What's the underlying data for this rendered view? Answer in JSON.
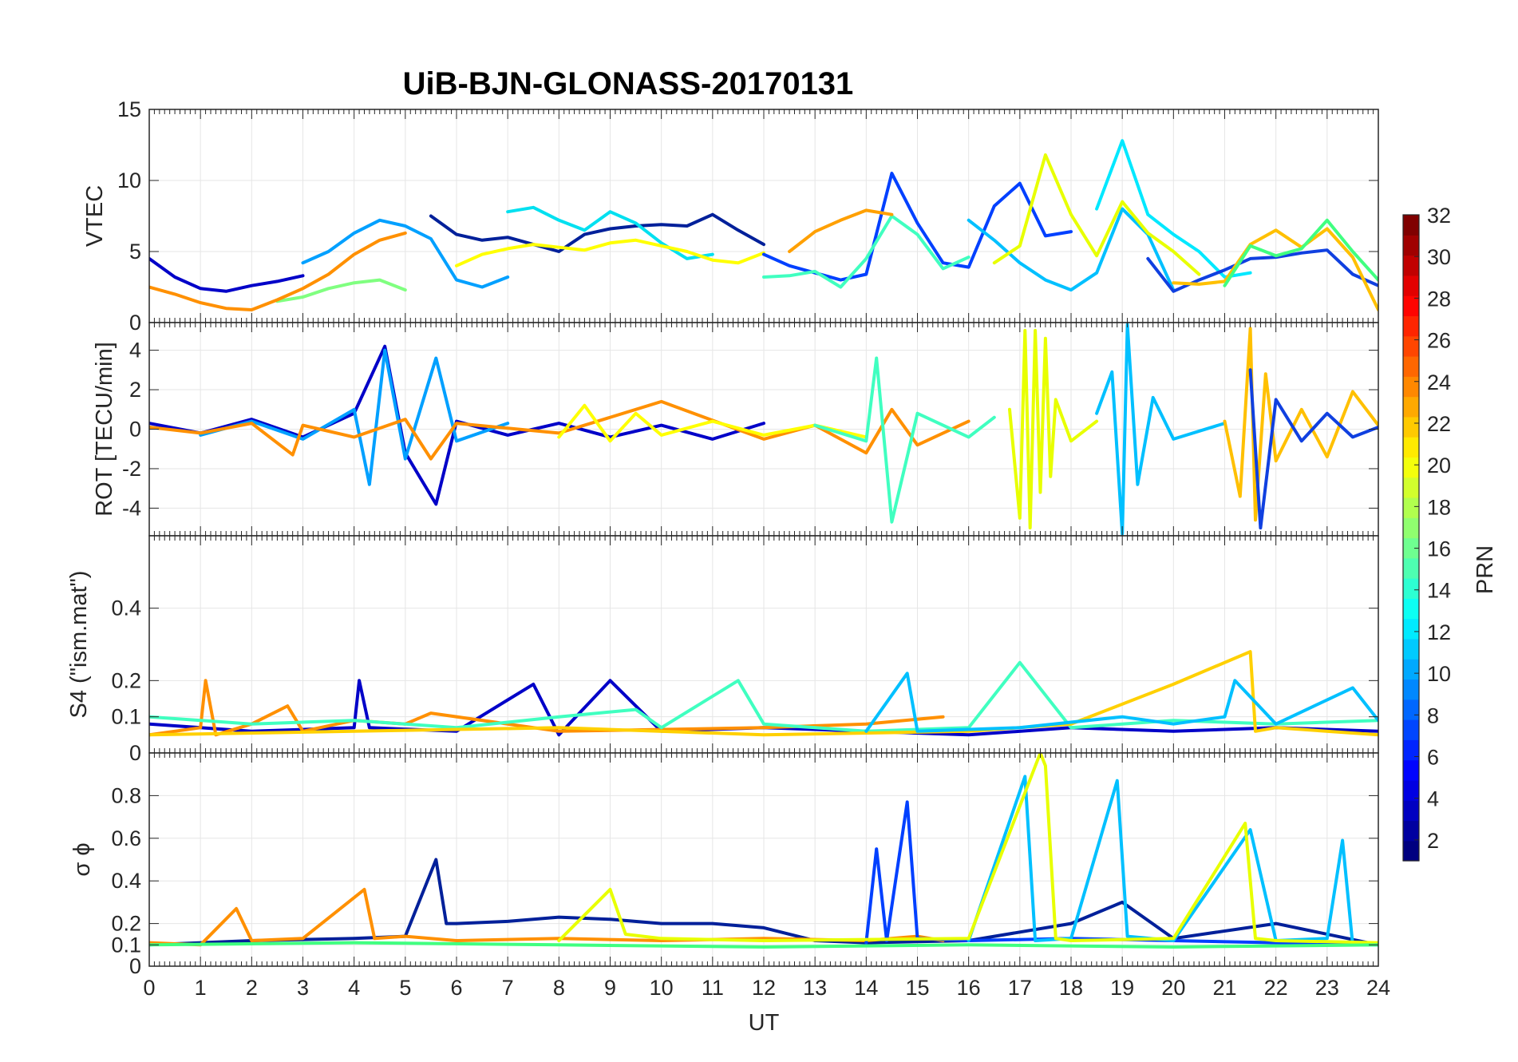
{
  "figure": {
    "title": "UiB-BJN-GLONASS-20170131",
    "xlabel": "UT"
  },
  "colorbar": {
    "label": "PRN",
    "colormap": "jet",
    "range": [
      1,
      32
    ],
    "ticks": [
      "2",
      "4",
      "6",
      "8",
      "10",
      "12",
      "14",
      "16",
      "18",
      "20",
      "22",
      "24",
      "26",
      "28",
      "30",
      "32"
    ]
  },
  "chart_data": [
    {
      "type": "line",
      "panel": "vtec",
      "ylabel": "VTEC",
      "xlim": [
        0,
        24
      ],
      "ylim": [
        0,
        15
      ],
      "yticks": [
        0,
        5,
        10,
        15
      ],
      "xticks": [],
      "grid": true,
      "series": [
        {
          "color": "#0000c8",
          "x": [
            0,
            0.5,
            1,
            1.5,
            2,
            2.5,
            3
          ],
          "y": [
            4.5,
            3.2,
            2.4,
            2.2,
            2.6,
            2.9,
            3.3
          ]
        },
        {
          "color": "#00a0ff",
          "x": [
            3,
            3.5,
            4,
            4.5,
            5,
            5.5,
            6,
            6.5,
            7
          ],
          "y": [
            4.2,
            5.0,
            6.3,
            7.2,
            6.8,
            5.9,
            3.0,
            2.5,
            3.2
          ]
        },
        {
          "color": "#00209a",
          "x": [
            5.5,
            6,
            6.5,
            7,
            7.5,
            8,
            8.5,
            9,
            9.5,
            10,
            10.5,
            11,
            11.5,
            12
          ],
          "y": [
            7.5,
            6.2,
            5.8,
            6.0,
            5.5,
            5.0,
            6.2,
            6.6,
            6.8,
            6.9,
            6.8,
            7.6,
            6.5,
            5.5
          ]
        },
        {
          "color": "#00e0f0",
          "x": [
            7,
            7.5,
            8,
            8.5,
            9,
            9.5,
            10,
            10.5,
            11
          ],
          "y": [
            7.8,
            8.1,
            7.2,
            6.5,
            7.8,
            7.0,
            5.6,
            4.5,
            4.8
          ]
        },
        {
          "color": "#80ff80",
          "x": [
            2.5,
            3,
            3.5,
            4,
            4.5,
            5
          ],
          "y": [
            1.5,
            1.8,
            2.4,
            2.8,
            3.0,
            2.3
          ]
        },
        {
          "color": "#ffff00",
          "x": [
            6,
            6.5,
            7,
            7.5,
            8,
            8.5,
            9,
            9.5,
            10,
            10.5,
            11,
            11.5,
            12
          ],
          "y": [
            4.0,
            4.8,
            5.2,
            5.5,
            5.3,
            5.1,
            5.6,
            5.8,
            5.4,
            5.0,
            4.4,
            4.2,
            4.9
          ]
        },
        {
          "color": "#ff9000",
          "x": [
            0,
            0.5,
            1,
            1.5,
            2,
            2.5,
            3,
            3.5,
            4,
            4.5,
            5
          ],
          "y": [
            2.5,
            2.0,
            1.4,
            1.0,
            0.9,
            1.6,
            2.4,
            3.4,
            4.8,
            5.8,
            6.3
          ]
        },
        {
          "color": "#0040ff",
          "x": [
            12,
            12.5,
            13,
            13.5,
            14,
            14.5,
            15,
            15.5,
            16,
            16.5,
            17,
            17.5,
            18
          ],
          "y": [
            4.8,
            4.0,
            3.5,
            3.0,
            3.4,
            10.5,
            7.0,
            4.2,
            3.9,
            8.2,
            9.8,
            6.1,
            6.4
          ]
        },
        {
          "color": "#40ffc0",
          "x": [
            12,
            12.5,
            13,
            13.5,
            14,
            14.5,
            15,
            15.5,
            16
          ],
          "y": [
            3.2,
            3.3,
            3.6,
            2.5,
            4.5,
            7.5,
            6.2,
            3.8,
            4.6
          ]
        },
        {
          "color": "#ffa000",
          "x": [
            12.5,
            13,
            13.5,
            14,
            14.5
          ],
          "y": [
            5.0,
            6.4,
            7.2,
            7.9,
            7.6
          ]
        },
        {
          "color": "#00c0ff",
          "x": [
            16,
            16.5,
            17,
            17.5,
            18,
            18.5,
            19,
            19.5,
            20
          ],
          "y": [
            7.2,
            5.8,
            4.2,
            3.0,
            2.3,
            3.5,
            8.0,
            6.2,
            2.3
          ]
        },
        {
          "color": "#e8ff00",
          "x": [
            16.5,
            17,
            17.5,
            18,
            18.5,
            19,
            19.5,
            20,
            20.5
          ],
          "y": [
            4.2,
            5.4,
            11.8,
            7.6,
            4.7,
            8.5,
            6.3,
            5.0,
            3.4
          ]
        },
        {
          "color": "#00e8ff",
          "x": [
            18.5,
            19,
            19.5,
            20,
            20.5,
            21,
            21.5
          ],
          "y": [
            8.0,
            12.8,
            7.6,
            6.2,
            5.0,
            3.2,
            3.5
          ]
        },
        {
          "color": "#1040e0",
          "x": [
            19.5,
            20,
            20.5,
            21,
            21.5,
            22,
            22.5,
            23,
            23.5,
            24
          ],
          "y": [
            4.5,
            2.2,
            3.0,
            3.7,
            4.5,
            4.6,
            4.9,
            5.1,
            3.4,
            2.6
          ]
        },
        {
          "color": "#ffc000",
          "x": [
            20,
            20.5,
            21,
            21.5,
            22,
            22.5,
            23,
            23.5,
            24
          ],
          "y": [
            2.8,
            2.7,
            2.9,
            5.5,
            6.5,
            5.3,
            6.6,
            4.6,
            0.9
          ]
        },
        {
          "color": "#40ff80",
          "x": [
            21,
            21.5,
            22,
            22.5,
            23,
            23.5,
            24
          ],
          "y": [
            2.6,
            5.4,
            4.7,
            5.2,
            7.2,
            5.0,
            3.0
          ]
        }
      ]
    },
    {
      "type": "line",
      "panel": "rot",
      "ylabel": "ROT [TECU/min]",
      "xlim": [
        0,
        24
      ],
      "ylim": [
        -5.4,
        5.4
      ],
      "yticks": [
        -4,
        -2,
        0,
        2,
        4
      ],
      "xticks": [],
      "grid": true,
      "series": [
        {
          "color": "#0000c8",
          "x": [
            0,
            1,
            2,
            3,
            4,
            4.6,
            5,
            5.6,
            6,
            7,
            8,
            9,
            10,
            11,
            12
          ],
          "y": [
            0.3,
            -0.2,
            0.5,
            -0.4,
            0.8,
            4.2,
            -1.2,
            -3.8,
            0.4,
            -0.3,
            0.3,
            -0.4,
            0.2,
            -0.5,
            0.3
          ]
        },
        {
          "color": "#00a0ff",
          "x": [
            1,
            2,
            3,
            4,
            4.3,
            4.6,
            5,
            5.6,
            6,
            7
          ],
          "y": [
            -0.3,
            0.4,
            -0.5,
            1.0,
            -2.8,
            4.0,
            -1.5,
            3.6,
            -0.6,
            0.3
          ]
        },
        {
          "color": "#ff9000",
          "x": [
            0,
            1,
            2,
            2.8,
            3,
            4,
            5,
            5.5,
            6,
            8,
            10,
            12,
            13,
            14,
            14.5,
            15,
            16
          ],
          "y": [
            0.1,
            -0.2,
            0.3,
            -1.3,
            0.2,
            -0.4,
            0.5,
            -1.5,
            0.3,
            -0.2,
            1.4,
            -0.5,
            0.2,
            -1.2,
            1.0,
            -0.8,
            0.4
          ]
        },
        {
          "color": "#ffff00",
          "x": [
            8,
            8.5,
            9,
            9.5,
            10,
            11,
            12,
            13,
            14
          ],
          "y": [
            -0.4,
            1.2,
            -0.6,
            0.8,
            -0.3,
            0.4,
            -0.3,
            0.2,
            -0.4
          ]
        },
        {
          "color": "#40ffc0",
          "x": [
            13,
            14,
            14.2,
            14.5,
            15,
            16,
            16.5
          ],
          "y": [
            0.2,
            -0.6,
            3.6,
            -4.7,
            0.8,
            -0.4,
            0.6
          ]
        },
        {
          "color": "#e8ff00",
          "x": [
            16.8,
            17,
            17.1,
            17.2,
            17.3,
            17.4,
            17.5,
            17.6,
            17.7,
            18,
            18.5
          ],
          "y": [
            1.0,
            -4.5,
            5.0,
            -5.0,
            5.0,
            -3.2,
            4.6,
            -2.4,
            1.5,
            -0.6,
            0.4
          ]
        },
        {
          "color": "#00c0ff",
          "x": [
            18.5,
            18.8,
            19,
            19.1,
            19.3,
            19.6,
            20,
            21
          ],
          "y": [
            0.8,
            2.9,
            -5.3,
            5.3,
            -2.8,
            1.6,
            -0.5,
            0.3
          ]
        },
        {
          "color": "#ffc000",
          "x": [
            21,
            21.3,
            21.5,
            21.6,
            21.8,
            22,
            22.5,
            23,
            23.5,
            24
          ],
          "y": [
            0.4,
            -3.4,
            5.1,
            -4.6,
            2.8,
            -1.6,
            1.0,
            -1.4,
            1.9,
            0.2
          ]
        },
        {
          "color": "#1040e0",
          "x": [
            21.5,
            21.7,
            22,
            22.5,
            23,
            23.5,
            24
          ],
          "y": [
            3.0,
            -5.0,
            1.5,
            -0.6,
            0.8,
            -0.4,
            0.1
          ]
        }
      ]
    },
    {
      "type": "line",
      "panel": "s4",
      "ylabel": "S4 (\"ism.mat\")",
      "xlim": [
        0,
        24
      ],
      "ylim": [
        0,
        0.6
      ],
      "yticks": [
        0,
        0.1,
        0.2,
        0.4
      ],
      "xticks": [],
      "grid": true,
      "series": [
        {
          "color": "#0000c8",
          "x": [
            0,
            2,
            4,
            4.1,
            4.3,
            6,
            7.5,
            8,
            9,
            10,
            12,
            14,
            16,
            18,
            20,
            22,
            24
          ],
          "y": [
            0.08,
            0.06,
            0.07,
            0.2,
            0.07,
            0.06,
            0.19,
            0.05,
            0.2,
            0.06,
            0.07,
            0.06,
            0.05,
            0.07,
            0.06,
            0.07,
            0.06
          ]
        },
        {
          "color": "#ff9000",
          "x": [
            0,
            1,
            1.1,
            1.3,
            2,
            2.7,
            3,
            4,
            5,
            5.5,
            8,
            12,
            14,
            15.5
          ],
          "y": [
            0.05,
            0.07,
            0.2,
            0.05,
            0.08,
            0.13,
            0.06,
            0.09,
            0.08,
            0.11,
            0.06,
            0.07,
            0.08,
            0.1
          ]
        },
        {
          "color": "#40ffc0",
          "x": [
            0,
            2,
            4,
            6,
            8,
            9.5,
            10,
            11.5,
            12,
            14,
            16,
            17,
            18,
            20,
            22,
            24
          ],
          "y": [
            0.1,
            0.08,
            0.09,
            0.07,
            0.1,
            0.12,
            0.07,
            0.2,
            0.08,
            0.06,
            0.07,
            0.25,
            0.07,
            0.09,
            0.08,
            0.09
          ]
        },
        {
          "color": "#ffd000",
          "x": [
            0,
            4,
            8,
            12,
            16,
            18,
            20,
            21.5,
            21.6,
            22,
            24
          ],
          "y": [
            0.05,
            0.06,
            0.07,
            0.05,
            0.06,
            0.08,
            0.19,
            0.28,
            0.06,
            0.07,
            0.05
          ]
        },
        {
          "color": "#00c0ff",
          "x": [
            14,
            14.8,
            15,
            17,
            19,
            20,
            21,
            21.2,
            22,
            23.5,
            24
          ],
          "y": [
            0.06,
            0.22,
            0.06,
            0.07,
            0.1,
            0.08,
            0.1,
            0.2,
            0.08,
            0.18,
            0.09
          ]
        }
      ]
    },
    {
      "type": "line",
      "panel": "sigma_phi",
      "ylabel": "σ ϕ",
      "xlim": [
        0,
        24
      ],
      "ylim": [
        0,
        1
      ],
      "yticks": [
        0,
        0.1,
        0.2,
        0.4,
        0.6,
        0.8
      ],
      "xticks": [
        0,
        1,
        2,
        3,
        4,
        5,
        6,
        7,
        8,
        9,
        10,
        11,
        12,
        13,
        14,
        15,
        16,
        17,
        18,
        19,
        20,
        21,
        22,
        23,
        24
      ],
      "grid": true,
      "series": [
        {
          "color": "#00209a",
          "x": [
            0,
            2,
            4,
            5,
            5.6,
            5.8,
            6,
            7,
            8,
            9,
            10,
            11,
            12,
            13,
            14,
            16,
            18,
            19,
            20,
            22,
            24
          ],
          "y": [
            0.1,
            0.12,
            0.13,
            0.14,
            0.5,
            0.2,
            0.2,
            0.21,
            0.23,
            0.22,
            0.2,
            0.2,
            0.18,
            0.12,
            0.11,
            0.12,
            0.2,
            0.3,
            0.13,
            0.2,
            0.1
          ]
        },
        {
          "color": "#ff9000",
          "x": [
            0,
            1,
            1.7,
            2,
            3,
            4.2,
            4.4,
            5,
            6,
            8,
            10,
            12,
            14,
            15,
            15.5
          ],
          "y": [
            0.11,
            0.1,
            0.27,
            0.12,
            0.13,
            0.36,
            0.13,
            0.14,
            0.12,
            0.13,
            0.12,
            0.13,
            0.12,
            0.14,
            0.12
          ]
        },
        {
          "color": "#0040ff",
          "x": [
            14,
            14.2,
            14.4,
            14.8,
            15,
            16,
            18,
            20,
            22,
            24
          ],
          "y": [
            0.11,
            0.55,
            0.12,
            0.77,
            0.13,
            0.12,
            0.13,
            0.12,
            0.11,
            0.1
          ]
        },
        {
          "color": "#00c0ff",
          "x": [
            16,
            17.1,
            17.3,
            18,
            18.9,
            19.1,
            20,
            21.5,
            22,
            23,
            23.3,
            23.5,
            24
          ],
          "y": [
            0.12,
            0.89,
            0.12,
            0.13,
            0.87,
            0.14,
            0.12,
            0.64,
            0.12,
            0.13,
            0.59,
            0.1,
            0.1
          ]
        },
        {
          "color": "#e8ff00",
          "x": [
            8,
            9,
            9.3,
            10,
            12,
            16,
            17.4,
            17.5,
            17.7,
            18,
            20,
            21.4,
            21.6,
            22,
            24
          ],
          "y": [
            0.12,
            0.36,
            0.15,
            0.13,
            0.12,
            0.13,
            1.0,
            0.94,
            0.13,
            0.12,
            0.13,
            0.67,
            0.13,
            0.12,
            0.11
          ]
        },
        {
          "color": "#40ff80",
          "x": [
            0,
            4,
            8,
            12,
            16,
            20,
            24
          ],
          "y": [
            0.1,
            0.11,
            0.1,
            0.09,
            0.1,
            0.09,
            0.1
          ]
        }
      ]
    }
  ]
}
